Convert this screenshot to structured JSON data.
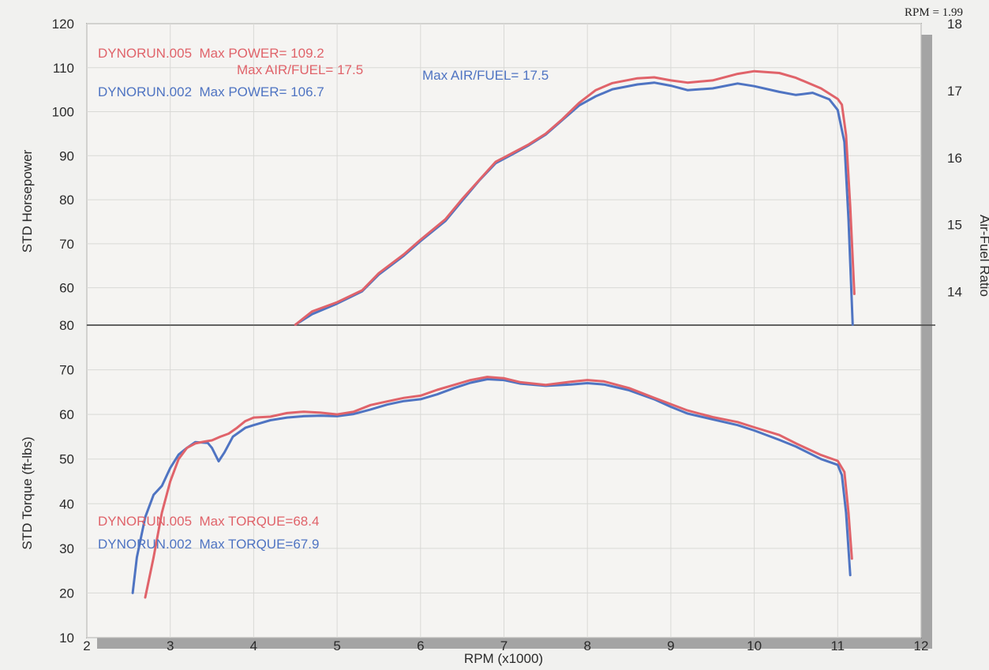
{
  "chart_data": {
    "type": "line",
    "top_rpm_readout": "RPM = 1.99",
    "x_axis": {
      "label": "RPM (x1000)",
      "range": [
        2,
        12
      ],
      "ticks": [
        "2",
        "3",
        "4",
        "5",
        "6",
        "7",
        "8",
        "9",
        "10",
        "11",
        "12"
      ]
    },
    "power_panel": {
      "ylabel": "STD Horsepower",
      "y_range": [
        51.5,
        120
      ],
      "y_ticks": [
        "60",
        "70",
        "80",
        "90",
        "100",
        "110",
        "120"
      ],
      "right_axis": {
        "label": "Air-Fuel Ratio",
        "range": [
          13.5,
          18
        ],
        "ticks": [
          "14",
          "15",
          "16",
          "17",
          "18"
        ]
      },
      "annotations": [
        {
          "text": "DYNORUN.005  Max POWER= 109.2",
          "series": "DYNORUN.005"
        },
        {
          "text": "Max AIR/FUEL= 17.5",
          "series": "DYNORUN.005"
        },
        {
          "text": "Max AIR/FUEL= 17.5",
          "series": "DYNORUN.002"
        },
        {
          "text": "DYNORUN.002  Max POWER= 106.7",
          "series": "DYNORUN.002"
        }
      ],
      "series": [
        {
          "name": "DYNORUN.005",
          "color": "#e0636a",
          "points": [
            [
              4.5,
              51.6
            ],
            [
              4.7,
              54.6
            ],
            [
              5.0,
              56.7
            ],
            [
              5.3,
              59.4
            ],
            [
              5.5,
              63.3
            ],
            [
              5.8,
              67.6
            ],
            [
              6.0,
              70.9
            ],
            [
              6.3,
              75.6
            ],
            [
              6.5,
              80.2
            ],
            [
              6.7,
              84.4
            ],
            [
              6.9,
              88.6
            ],
            [
              7.1,
              90.6
            ],
            [
              7.3,
              92.6
            ],
            [
              7.5,
              95.0
            ],
            [
              7.7,
              98.3
            ],
            [
              7.9,
              102.0
            ],
            [
              8.1,
              104.9
            ],
            [
              8.3,
              106.5
            ],
            [
              8.6,
              107.6
            ],
            [
              8.8,
              107.8
            ],
            [
              9.0,
              107.1
            ],
            [
              9.2,
              106.6
            ],
            [
              9.5,
              107.1
            ],
            [
              9.8,
              108.6
            ],
            [
              10.0,
              109.2
            ],
            [
              10.3,
              108.8
            ],
            [
              10.5,
              107.7
            ],
            [
              10.8,
              105.3
            ],
            [
              11.0,
              102.9
            ],
            [
              11.05,
              101.6
            ],
            [
              11.1,
              94.7
            ],
            [
              11.15,
              78.4
            ],
            [
              11.2,
              58.6
            ]
          ]
        },
        {
          "name": "DYNORUN.002",
          "color": "#4f74c2",
          "points": [
            [
              4.5,
              51.6
            ],
            [
              4.7,
              54.0
            ],
            [
              5.0,
              56.4
            ],
            [
              5.3,
              59.2
            ],
            [
              5.5,
              63.0
            ],
            [
              5.8,
              67.3
            ],
            [
              6.0,
              70.6
            ],
            [
              6.3,
              75.2
            ],
            [
              6.5,
              79.8
            ],
            [
              6.7,
              84.3
            ],
            [
              6.9,
              88.3
            ],
            [
              7.1,
              90.3
            ],
            [
              7.3,
              92.4
            ],
            [
              7.5,
              94.8
            ],
            [
              7.7,
              98.1
            ],
            [
              7.9,
              101.4
            ],
            [
              8.1,
              103.5
            ],
            [
              8.3,
              105.1
            ],
            [
              8.6,
              106.2
            ],
            [
              8.8,
              106.6
            ],
            [
              9.0,
              105.9
            ],
            [
              9.2,
              104.9
            ],
            [
              9.5,
              105.3
            ],
            [
              9.8,
              106.4
            ],
            [
              10.0,
              105.8
            ],
            [
              10.3,
              104.5
            ],
            [
              10.5,
              103.8
            ],
            [
              10.7,
              104.3
            ],
            [
              10.9,
              102.8
            ],
            [
              11.0,
              100.4
            ],
            [
              11.08,
              93.1
            ],
            [
              11.13,
              75.5
            ],
            [
              11.18,
              51.6
            ]
          ]
        }
      ]
    },
    "torque_panel": {
      "ylabel": "STD Torque (ft-lbs)",
      "y_range": [
        10,
        80
      ],
      "y_ticks": [
        "10",
        "20",
        "30",
        "40",
        "50",
        "60",
        "70",
        "80"
      ],
      "annotations": [
        {
          "text": "DYNORUN.005  Max TORQUE=68.4",
          "series": "DYNORUN.005"
        },
        {
          "text": "DYNORUN.002  Max TORQUE=67.9",
          "series": "DYNORUN.002"
        }
      ],
      "series": [
        {
          "name": "DYNORUN.005",
          "color": "#e0636a",
          "points": [
            [
              2.7,
              19
            ],
            [
              2.8,
              28
            ],
            [
              2.9,
              38
            ],
            [
              3.0,
              45
            ],
            [
              3.1,
              50
            ],
            [
              3.2,
              52.5
            ],
            [
              3.3,
              53.5
            ],
            [
              3.4,
              53.9
            ],
            [
              3.5,
              54.2
            ],
            [
              3.6,
              55
            ],
            [
              3.7,
              55.7
            ],
            [
              3.8,
              57
            ],
            [
              3.9,
              58.5
            ],
            [
              4.0,
              59.3
            ],
            [
              4.2,
              59.5
            ],
            [
              4.4,
              60.3
            ],
            [
              4.6,
              60.6
            ],
            [
              4.8,
              60.4
            ],
            [
              5.0,
              60.0
            ],
            [
              5.2,
              60.6
            ],
            [
              5.4,
              62.1
            ],
            [
              5.6,
              62.9
            ],
            [
              5.8,
              63.7
            ],
            [
              6.0,
              64.2
            ],
            [
              6.2,
              65.5
            ],
            [
              6.4,
              66.6
            ],
            [
              6.6,
              67.7
            ],
            [
              6.8,
              68.4
            ],
            [
              7.0,
              68.1
            ],
            [
              7.2,
              67.2
            ],
            [
              7.5,
              66.6
            ],
            [
              7.8,
              67.3
            ],
            [
              8.0,
              67.7
            ],
            [
              8.2,
              67.4
            ],
            [
              8.5,
              65.9
            ],
            [
              8.8,
              63.7
            ],
            [
              9.0,
              62.3
            ],
            [
              9.2,
              60.9
            ],
            [
              9.5,
              59.4
            ],
            [
              9.8,
              58.3
            ],
            [
              10.0,
              57.1
            ],
            [
              10.3,
              55.4
            ],
            [
              10.5,
              53.5
            ],
            [
              10.8,
              50.9
            ],
            [
              11.0,
              49.6
            ],
            [
              11.08,
              47.1
            ],
            [
              11.13,
              38.0
            ],
            [
              11.17,
              27.7
            ]
          ]
        },
        {
          "name": "DYNORUN.002",
          "color": "#4f74c2",
          "points": [
            [
              2.55,
              20
            ],
            [
              2.6,
              28
            ],
            [
              2.7,
              37
            ],
            [
              2.8,
              42
            ],
            [
              2.9,
              44
            ],
            [
              3.0,
              48
            ],
            [
              3.1,
              51
            ],
            [
              3.2,
              52.5
            ],
            [
              3.3,
              53.8
            ],
            [
              3.45,
              53.6
            ],
            [
              3.5,
              52.5
            ],
            [
              3.58,
              49.5
            ],
            [
              3.65,
              51.5
            ],
            [
              3.75,
              55
            ],
            [
              3.9,
              57
            ],
            [
              4.0,
              57.6
            ],
            [
              4.2,
              58.7
            ],
            [
              4.4,
              59.3
            ],
            [
              4.6,
              59.6
            ],
            [
              4.8,
              59.7
            ],
            [
              5.0,
              59.6
            ],
            [
              5.2,
              60.1
            ],
            [
              5.4,
              61.1
            ],
            [
              5.6,
              62.2
            ],
            [
              5.8,
              63.0
            ],
            [
              6.0,
              63.4
            ],
            [
              6.2,
              64.5
            ],
            [
              6.4,
              65.9
            ],
            [
              6.6,
              67.1
            ],
            [
              6.8,
              67.9
            ],
            [
              7.0,
              67.7
            ],
            [
              7.2,
              66.9
            ],
            [
              7.5,
              66.4
            ],
            [
              7.8,
              66.7
            ],
            [
              8.0,
              67.0
            ],
            [
              8.2,
              66.7
            ],
            [
              8.5,
              65.4
            ],
            [
              8.8,
              63.4
            ],
            [
              9.0,
              61.7
            ],
            [
              9.2,
              60.2
            ],
            [
              9.5,
              58.9
            ],
            [
              9.8,
              57.6
            ],
            [
              10.0,
              56.4
            ],
            [
              10.3,
              54.3
            ],
            [
              10.5,
              52.8
            ],
            [
              10.8,
              50.0
            ],
            [
              11.0,
              48.7
            ],
            [
              11.05,
              46.4
            ],
            [
              11.1,
              38.0
            ],
            [
              11.15,
              24.0
            ]
          ]
        }
      ]
    }
  }
}
